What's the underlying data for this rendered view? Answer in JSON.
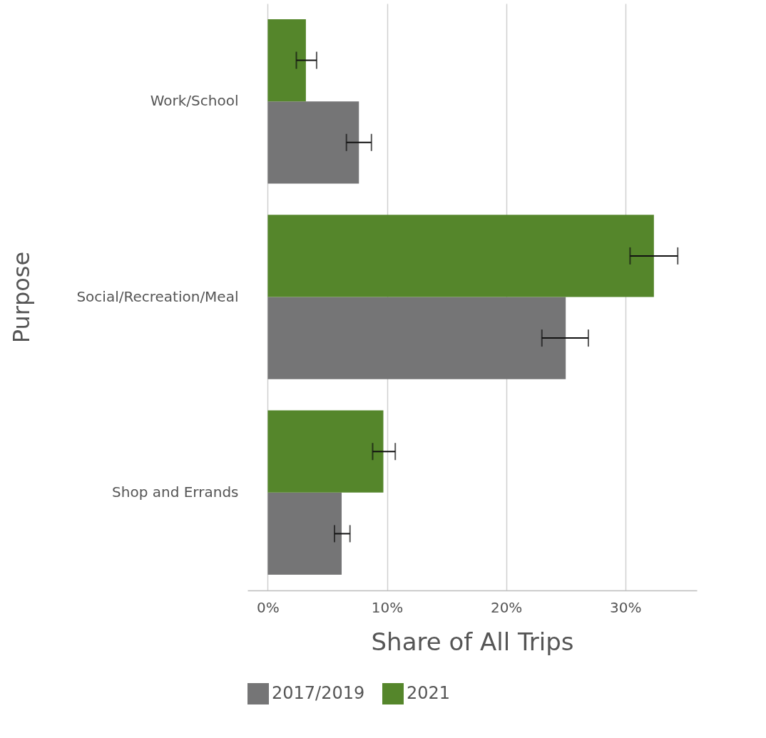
{
  "chart_data": {
    "type": "bar",
    "orientation": "horizontal",
    "xlabel": "Share of All Trips",
    "ylabel": "Purpose",
    "categories": [
      "Work/School",
      "Social/Recreation/Meal",
      "Shop and Errands"
    ],
    "series": [
      {
        "name": "2017/2019",
        "color": "#757576",
        "values": [
          7.65,
          25.0,
          6.2
        ],
        "errors": [
          [
            6.6,
            8.7
          ],
          [
            23.0,
            26.9
          ],
          [
            5.6,
            6.9
          ]
        ]
      },
      {
        "name": "2021",
        "color": "#55862b",
        "values": [
          3.2,
          32.4,
          9.7
        ],
        "errors": [
          [
            2.4,
            4.1
          ],
          [
            30.4,
            34.4
          ],
          [
            8.8,
            10.7
          ]
        ]
      }
    ],
    "xlim": [
      -1.7,
      36
    ],
    "xticks": [
      {
        "value": 0,
        "label": "0%"
      },
      {
        "value": 10,
        "label": "10%"
      },
      {
        "value": 20,
        "label": "20%"
      },
      {
        "value": 30,
        "label": "30%"
      }
    ],
    "grid": "x",
    "legend": "bottom"
  }
}
